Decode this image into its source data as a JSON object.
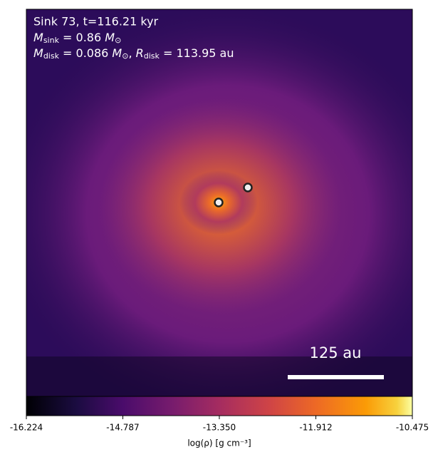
{
  "chart_data": {
    "type": "heatmap",
    "annotation": {
      "line1": "Sink 73, t=116.21 kyr",
      "line2": {
        "symbol": "M",
        "sub": "sink",
        "text": " = 0.86 ",
        "unit": "M",
        "unit_sub": "⊙"
      },
      "line3": {
        "symbol": "M",
        "sub": "disk",
        "text": " = 0.086 ",
        "unit": "M",
        "unit_sub": "⊙",
        "sep": ", ",
        "symbol2": "R",
        "sub2": "disk",
        "text2": " = 113.95 au"
      }
    },
    "scale_bar_label": "125 au",
    "colorbar": {
      "label": "log(ρ) [g cm⁻³]",
      "xlim": [
        -16.224,
        -10.475
      ],
      "xticks": [
        -16.224,
        -14.787,
        {
          "value": -13.35,
          "label": "-13.350"
        },
        -11.912,
        -10.475
      ]
    }
  }
}
